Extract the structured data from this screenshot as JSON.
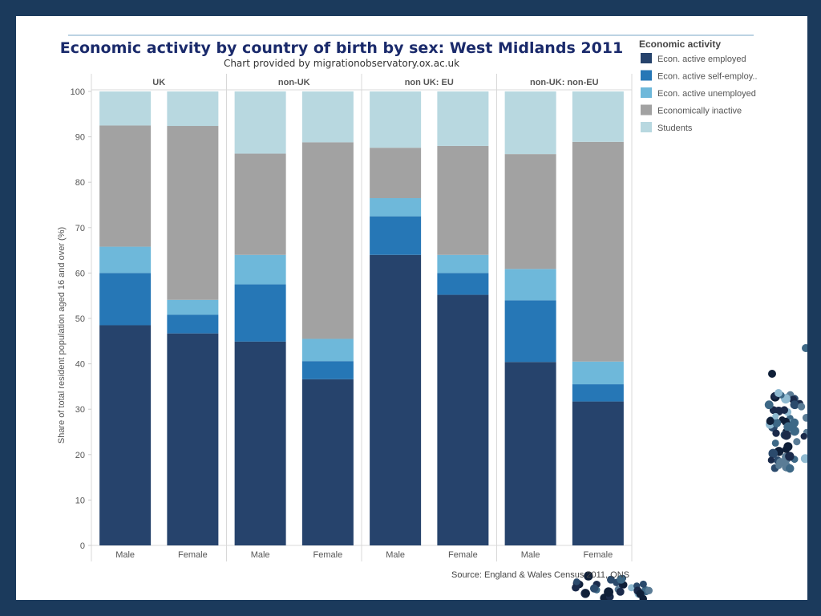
{
  "chart_data": {
    "type": "bar",
    "stacked": true,
    "title": "Economic activity by country of birth by sex: West Midlands 2011",
    "subtitle": "Chart provided by migrationobservatory.ox.ac.uk",
    "ylabel": "Share of total resident population aged 16 and over (%)",
    "ylim": [
      0,
      100
    ],
    "yticks": [
      0,
      10,
      20,
      30,
      40,
      50,
      60,
      70,
      80,
      90,
      100
    ],
    "grid": false,
    "legend_title": "Economic activity",
    "legend_position": "right",
    "source": "Source: England & Wales Census 2011, ONS",
    "panels": [
      {
        "name": "UK",
        "categories": [
          "Male",
          "Female"
        ]
      },
      {
        "name": "non-UK",
        "categories": [
          "Male",
          "Female"
        ]
      },
      {
        "name": "non UK: EU",
        "categories": [
          "Male",
          "Female"
        ]
      },
      {
        "name": "non-UK: non-EU",
        "categories": [
          "Male",
          "Female"
        ]
      }
    ],
    "series": [
      {
        "name": "Econ. active employed",
        "color": "#26436c",
        "values": [
          48.5,
          46.7,
          44.9,
          36.6,
          64.0,
          55.2,
          40.4,
          31.7
        ]
      },
      {
        "name": "Econ. active self-employ..",
        "color": "#2677b6",
        "values": [
          11.5,
          4.1,
          12.6,
          4.0,
          8.5,
          4.8,
          13.6,
          3.8
        ]
      },
      {
        "name": "Econ. active unemployed",
        "color": "#6eb8da",
        "values": [
          5.8,
          3.3,
          6.5,
          4.9,
          4.0,
          4.0,
          6.9,
          5.0
        ]
      },
      {
        "name": "Economically inactive",
        "color": "#a2a2a2",
        "values": [
          26.7,
          38.3,
          22.3,
          43.3,
          11.1,
          24.0,
          25.3,
          48.4
        ]
      },
      {
        "name": "Students",
        "color": "#b8d8e0",
        "values": [
          7.5,
          7.6,
          13.7,
          11.2,
          12.4,
          12.0,
          13.8,
          11.1
        ]
      }
    ]
  }
}
